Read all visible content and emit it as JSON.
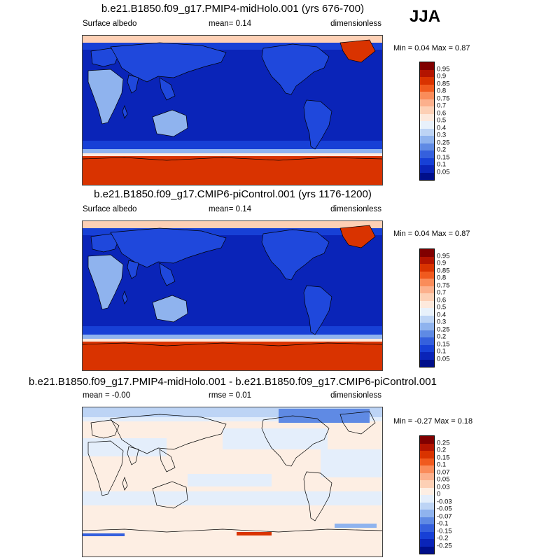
{
  "season": "JJA",
  "panels": [
    {
      "title": "b.e21.B1850.f09_g17.PMIP4-midHolo.001 (yrs 676-700)",
      "left": "Surface albedo",
      "center": "mean=   0.14",
      "right": "dimensionless",
      "minmax": "Min =   0.04 Max =   0.87",
      "colorbar": {
        "labels": [
          "0.95",
          "0.9",
          "0.85",
          "0.8",
          "0.75",
          "0.7",
          "0.6",
          "0.5",
          "0.4",
          "0.3",
          "0.25",
          "0.2",
          "0.15",
          "0.1",
          "0.05"
        ],
        "colors": [
          "#800000",
          "#b31400",
          "#d93300",
          "#f05a1e",
          "#fa8c5a",
          "#fcb08c",
          "#fdd0b5",
          "#fde9dc",
          "#e8f1fb",
          "#bdd4f5",
          "#8fb3ee",
          "#5f8ae4",
          "#3560dd",
          "#1740d6",
          "#0a24b8",
          "#000f8a"
        ]
      },
      "type": "albedo"
    },
    {
      "title": "b.e21.B1850.f09_g17.CMIP6-piControl.001 (yrs 1176-1200)",
      "left": "Surface albedo",
      "center": "mean=   0.14",
      "right": "dimensionless",
      "minmax": "Min =   0.04 Max =   0.87",
      "colorbar": {
        "labels": [
          "0.95",
          "0.9",
          "0.85",
          "0.8",
          "0.75",
          "0.7",
          "0.6",
          "0.5",
          "0.4",
          "0.3",
          "0.25",
          "0.2",
          "0.15",
          "0.1",
          "0.05"
        ],
        "colors": [
          "#800000",
          "#b31400",
          "#d93300",
          "#f05a1e",
          "#fa8c5a",
          "#fcb08c",
          "#fdd0b5",
          "#fde9dc",
          "#e8f1fb",
          "#bdd4f5",
          "#8fb3ee",
          "#5f8ae4",
          "#3560dd",
          "#1740d6",
          "#0a24b8",
          "#000f8a"
        ]
      },
      "type": "albedo"
    },
    {
      "title": "b.e21.B1850.f09_g17.PMIP4-midHolo.001 - b.e21.B1850.f09_g17.CMIP6-piControl.001",
      "left": "mean =   -0.00",
      "center": "rmse =   0.01",
      "right": "dimensionless",
      "minmax": "Min =  -0.27 Max =   0.18",
      "colorbar": {
        "labels": [
          "0.25",
          "0.2",
          "0.15",
          "0.1",
          "0.07",
          "0.05",
          "0.03",
          "0",
          "-0.03",
          "-0.05",
          "-0.07",
          "-0.1",
          "-0.15",
          "-0.2",
          "-0.25"
        ],
        "colors": [
          "#800000",
          "#b31400",
          "#d93300",
          "#f05a1e",
          "#fa8c5a",
          "#fcb08c",
          "#fdd0b5",
          "#fdeee3",
          "#e4eefb",
          "#bdd4f5",
          "#8fb3ee",
          "#5f8ae4",
          "#3560dd",
          "#1740d6",
          "#0a24b8",
          "#000f8a"
        ]
      },
      "type": "diff"
    }
  ]
}
